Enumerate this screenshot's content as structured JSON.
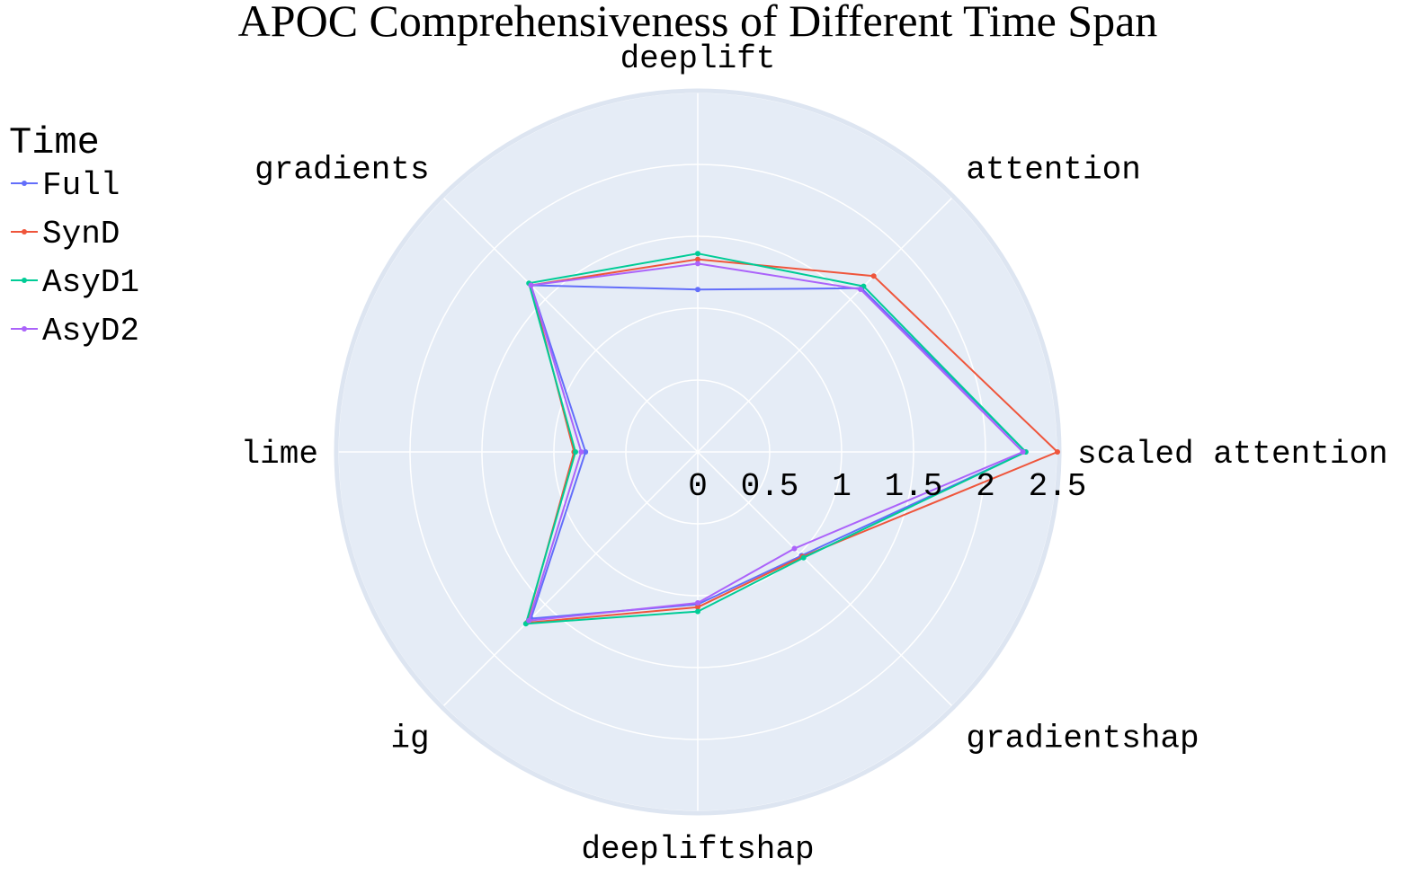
{
  "chart_data": {
    "type": "radar",
    "title": "APOC Comprehensiveness of Different Time Span",
    "axes": [
      "scaled attention",
      "attention",
      "deeplift",
      "gradients",
      "lime",
      "ig",
      "deepliftshap",
      "gradientshap"
    ],
    "radial_range": [
      0,
      2.5
    ],
    "radial_ticks": [
      "0",
      "0.5",
      "1",
      "1.5",
      "2",
      "2.5"
    ],
    "legend_title": "Time",
    "legend_position": "top-left",
    "series": [
      {
        "name": "Full",
        "color": "#636efa",
        "values": [
          2.28,
          1.61,
          1.13,
          1.64,
          0.78,
          1.64,
          1.06,
          1.02
        ]
      },
      {
        "name": "SynD",
        "color": "#ef553b",
        "values": [
          2.5,
          1.73,
          1.34,
          1.64,
          0.86,
          1.68,
          1.08,
          1.03
        ]
      },
      {
        "name": "AsyD1",
        "color": "#00cc96",
        "values": [
          2.28,
          1.63,
          1.38,
          1.66,
          0.85,
          1.69,
          1.11,
          1.04
        ]
      },
      {
        "name": "AsyD2",
        "color": "#ab63fa",
        "values": [
          2.26,
          1.6,
          1.31,
          1.64,
          0.81,
          1.66,
          1.05,
          0.95
        ]
      }
    ]
  }
}
